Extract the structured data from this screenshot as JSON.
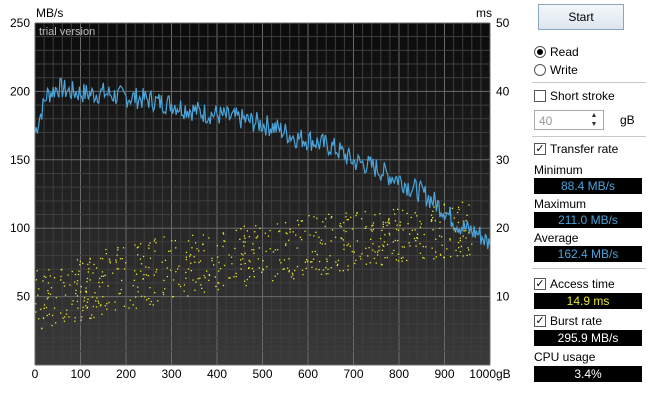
{
  "chart": {
    "unit_left": "MB/s",
    "unit_right": "ms",
    "watermark": "trial version",
    "x_unit": "gB",
    "left_ticks": [
      "250",
      "200",
      "150",
      "100",
      "50"
    ],
    "right_ticks": [
      "50",
      "40",
      "30",
      "20",
      "10"
    ],
    "x_ticks": [
      "0",
      "100",
      "200",
      "300",
      "400",
      "500",
      "600",
      "700",
      "800",
      "900",
      "1000"
    ]
  },
  "chart_data": {
    "type": "line",
    "x_range": [
      0,
      1000
    ],
    "ylim_left": [
      0,
      250
    ],
    "ylim_right": [
      0,
      50
    ],
    "grid": true,
    "series": [
      {
        "axis": "left",
        "color": "#4aa3d9",
        "x": [
          0,
          25,
          50,
          75,
          100,
          125,
          150,
          175,
          200,
          225,
          250,
          275,
          300,
          325,
          350,
          375,
          400,
          425,
          450,
          475,
          500,
          525,
          550,
          575,
          600,
          625,
          650,
          675,
          700,
          725,
          750,
          775,
          800,
          825,
          850,
          875,
          900,
          925,
          950,
          975,
          1000
        ],
        "values": [
          170,
          197,
          203,
          200,
          199,
          198,
          199,
          197,
          196,
          195,
          194,
          192,
          191,
          188,
          186,
          184,
          183,
          181,
          180,
          178,
          176,
          174,
          170,
          166,
          165,
          162,
          160,
          155,
          149,
          147,
          144,
          139,
          136,
          130,
          126,
          120,
          113,
          104,
          99,
          96,
          88
        ]
      }
    ],
    "access_points": {
      "axis": "right",
      "color": "#e6e62e",
      "trend_x": [
        0,
        200,
        400,
        600,
        800,
        920
      ],
      "trend_ms_min": [
        5,
        8,
        11,
        13,
        15,
        16
      ],
      "trend_ms_max": [
        14,
        18,
        20,
        22,
        23,
        24
      ]
    }
  },
  "panel": {
    "start_label": "Start",
    "read_label": "Read",
    "write_label": "Write",
    "short_stroke_label": "Short stroke",
    "stroke_value": "40",
    "stroke_unit": "gB",
    "transfer_rate_label": "Transfer rate",
    "minimum_label": "Minimum",
    "minimum_value": "88.4 MB/s",
    "maximum_label": "Maximum",
    "maximum_value": "211.0 MB/s",
    "average_label": "Average",
    "average_value": "162.4 MB/s",
    "access_time_label": "Access time",
    "access_time_value": "14.9 ms",
    "burst_rate_label": "Burst rate",
    "burst_rate_value": "295.9 MB/s",
    "cpu_label": "CPU usage",
    "cpu_value": "3.4%",
    "value_color_blue": "#4aa3d9",
    "value_color_yellow": "#e6e62e",
    "value_color_white": "#ffffff"
  }
}
